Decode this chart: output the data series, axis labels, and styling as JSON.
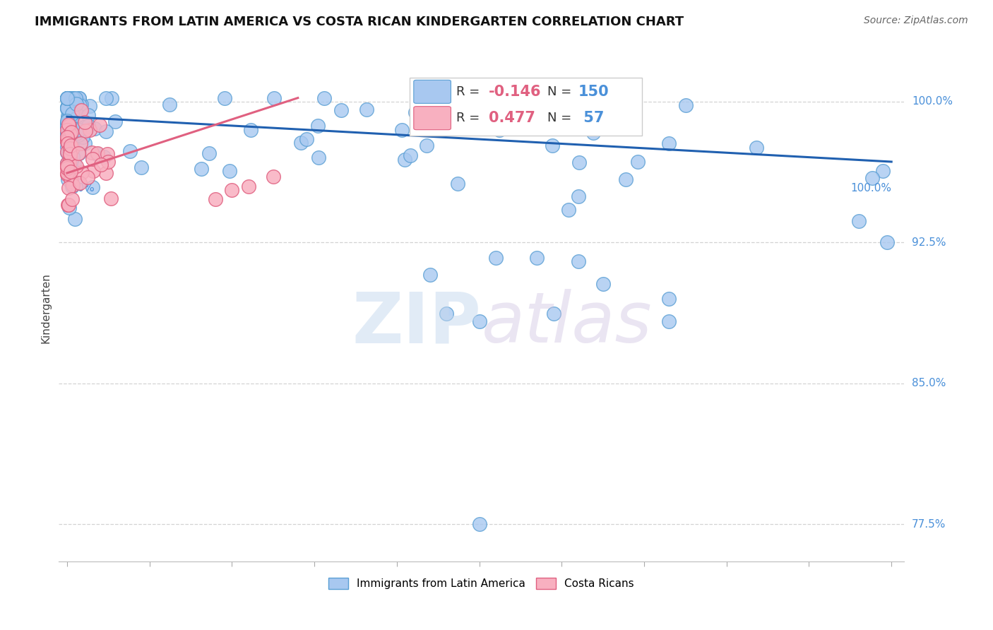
{
  "title": "IMMIGRANTS FROM LATIN AMERICA VS COSTA RICAN KINDERGARTEN CORRELATION CHART",
  "source_text": "Source: ZipAtlas.com",
  "series1_label": "Immigrants from Latin America",
  "series1_color": "#a8c8f0",
  "series1_edge_color": "#5a9fd4",
  "series1_R": -0.146,
  "series1_N": 150,
  "series1_line_color": "#2060b0",
  "series2_label": "Costa Ricans",
  "series2_color": "#f8b0c0",
  "series2_edge_color": "#e06080",
  "series2_R": 0.477,
  "series2_N": 57,
  "series2_line_color": "#e06080",
  "watermark_zip": "ZIP",
  "watermark_atlas": "atlas",
  "background_color": "#ffffff",
  "ylabel": "Kindergarten",
  "ytick_vals": [
    0.775,
    0.85,
    0.925,
    1.0
  ],
  "ytick_labels": [
    "77.5%",
    "85.0%",
    "92.5%",
    "100.0%"
  ],
  "xlim": [
    0.0,
    1.0
  ],
  "ylim": [
    0.755,
    1.025
  ]
}
